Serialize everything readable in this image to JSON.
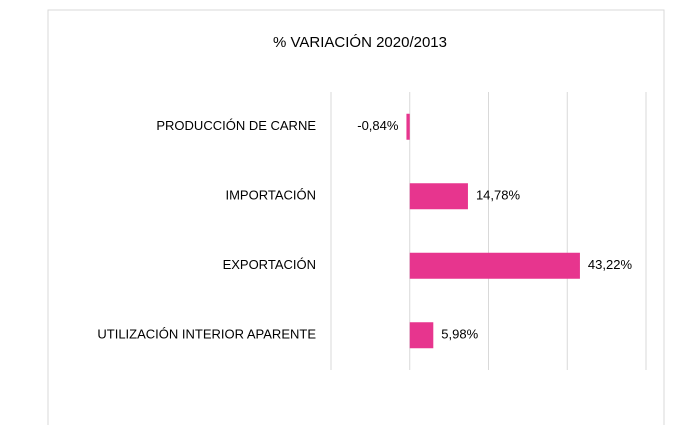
{
  "chart_data": {
    "type": "bar",
    "orientation": "horizontal",
    "title": "% VARIACIÓN 2020/2013",
    "categories": [
      "PRODUCCIÓN DE CARNE",
      "IMPORTACIÓN",
      "EXPORTACIÓN",
      "UTILIZACIÓN INTERIOR APARENTE"
    ],
    "values": [
      -0.84,
      14.78,
      43.22,
      5.98
    ],
    "value_labels": [
      "-0,84%",
      "14,78%",
      "43,22%",
      "5,98%"
    ],
    "color": "#e7358e",
    "xlim": [
      -20,
      60
    ],
    "xticks": [
      -20,
      0,
      20,
      40,
      60
    ],
    "grid": true
  }
}
